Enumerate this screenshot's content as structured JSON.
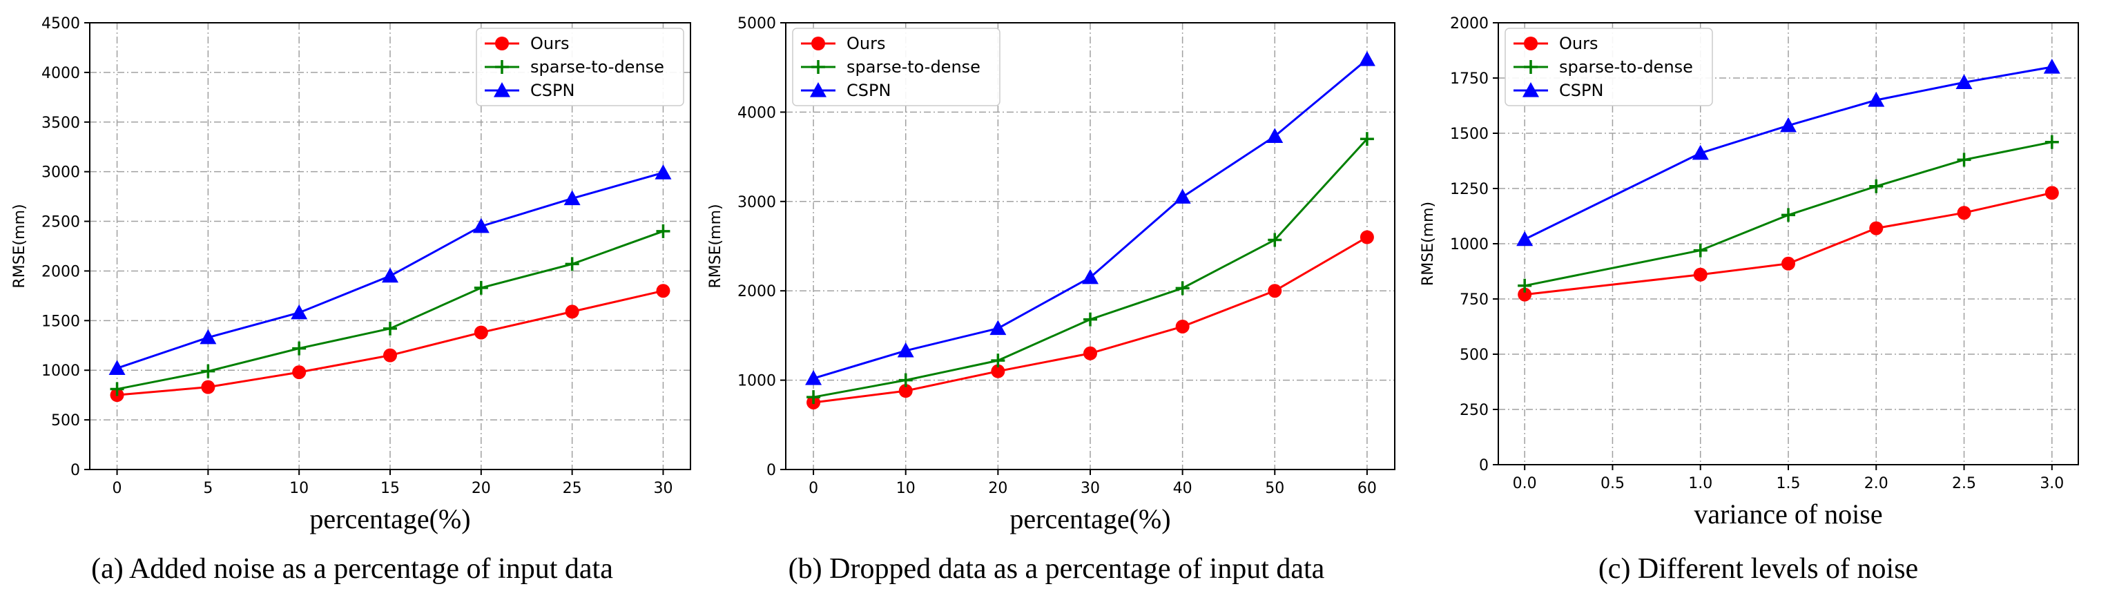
{
  "chart_data": [
    {
      "type": "line",
      "caption": "(a) Added noise as a percentage of input data",
      "xlabel": "percentage(%)",
      "ylabel": "RMSE(mm)",
      "x": [
        0,
        5,
        10,
        15,
        20,
        25,
        30
      ],
      "xlim": [
        -1.5,
        31.5
      ],
      "xticks": [
        0,
        5,
        10,
        15,
        20,
        25,
        30
      ],
      "xtick_labels": [
        "0",
        "5",
        "10",
        "15",
        "20",
        "25",
        "30"
      ],
      "ylim": [
        0,
        4500
      ],
      "yticks": [
        0,
        500,
        1000,
        1500,
        2000,
        2500,
        3000,
        3500,
        4000,
        4500
      ],
      "ytick_labels": [
        "0",
        "500",
        "1000",
        "1500",
        "2000",
        "2500",
        "3000",
        "3500",
        "4000",
        "4500"
      ],
      "legend_position": "top-right",
      "series": [
        {
          "name": "Ours",
          "color": "#ff0000",
          "marker": "circle",
          "values": [
            750,
            830,
            980,
            1150,
            1380,
            1590,
            1800
          ]
        },
        {
          "name": "sparse-to-dense",
          "color": "#008000",
          "marker": "plus",
          "values": [
            810,
            990,
            1220,
            1420,
            1830,
            2070,
            2400
          ]
        },
        {
          "name": "CSPN",
          "color": "#0000ff",
          "marker": "triangle",
          "values": [
            1020,
            1330,
            1580,
            1950,
            2450,
            2730,
            2990
          ]
        }
      ]
    },
    {
      "type": "line",
      "caption": "(b) Dropped data as a percentage of input data",
      "xlabel": "percentage(%)",
      "ylabel": "RMSE(mm)",
      "x": [
        0,
        10,
        20,
        30,
        40,
        50,
        60
      ],
      "xlim": [
        -3,
        63
      ],
      "xticks": [
        0,
        10,
        20,
        30,
        40,
        50,
        60
      ],
      "xtick_labels": [
        "0",
        "10",
        "20",
        "30",
        "40",
        "50",
        "60"
      ],
      "ylim": [
        0,
        5000
      ],
      "yticks": [
        0,
        1000,
        2000,
        3000,
        4000,
        5000
      ],
      "ytick_labels": [
        "0",
        "1000",
        "2000",
        "3000",
        "4000",
        "5000"
      ],
      "legend_position": "top-left",
      "series": [
        {
          "name": "Ours",
          "color": "#ff0000",
          "marker": "circle",
          "values": [
            750,
            880,
            1100,
            1300,
            1600,
            2000,
            2600
          ]
        },
        {
          "name": "sparse-to-dense",
          "color": "#008000",
          "marker": "plus",
          "values": [
            810,
            1000,
            1220,
            1680,
            2030,
            2570,
            3700
          ]
        },
        {
          "name": "CSPN",
          "color": "#0000ff",
          "marker": "triangle",
          "values": [
            1020,
            1330,
            1580,
            2150,
            3050,
            3730,
            4590
          ]
        }
      ]
    },
    {
      "type": "line",
      "caption": "(c) Different levels of noise",
      "xlabel": "variance of noise",
      "ylabel": "RMSE(mm)",
      "x": [
        0.0,
        1.0,
        1.5,
        2.0,
        2.5,
        3.0
      ],
      "xlim": [
        -0.15,
        3.15
      ],
      "xticks": [
        0.0,
        0.5,
        1.0,
        1.5,
        2.0,
        2.5,
        3.0
      ],
      "xtick_labels": [
        "0.0",
        "0.5",
        "1.0",
        "1.5",
        "2.0",
        "2.5",
        "3.0"
      ],
      "ylim": [
        0,
        2000
      ],
      "yticks": [
        0,
        250,
        500,
        750,
        1000,
        1250,
        1500,
        1750,
        2000
      ],
      "ytick_labels": [
        "0",
        "250",
        "500",
        "750",
        "1000",
        "1250",
        "1500",
        "1750",
        "2000"
      ],
      "legend_position": "top-left",
      "series": [
        {
          "name": "Ours",
          "color": "#ff0000",
          "marker": "circle",
          "values": [
            770,
            860,
            910,
            1070,
            1140,
            1230
          ]
        },
        {
          "name": "sparse-to-dense",
          "color": "#008000",
          "marker": "plus",
          "values": [
            810,
            970,
            1130,
            1260,
            1380,
            1460
          ]
        },
        {
          "name": "CSPN",
          "color": "#0000ff",
          "marker": "triangle",
          "values": [
            1020,
            1410,
            1535,
            1650,
            1730,
            1800
          ]
        }
      ]
    }
  ]
}
